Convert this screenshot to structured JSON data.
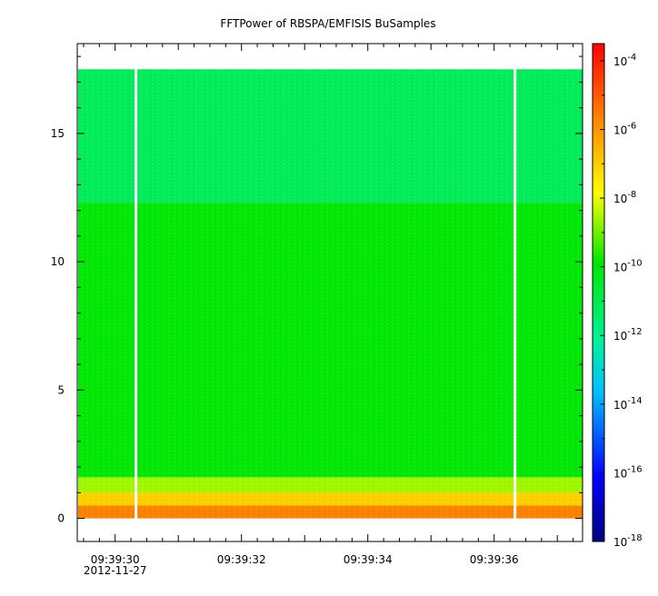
{
  "chart_data": {
    "type": "heatmap",
    "title": "FFTPower of RBSPA/EMFISIS  BuSamples",
    "xlabel": "",
    "ylabel": "",
    "x_ticks": [
      {
        "label": "09:39:30",
        "sub": "2012-11-27",
        "t": 30
      },
      {
        "label": "09:39:32",
        "sub": "",
        "t": 32
      },
      {
        "label": "09:39:34",
        "sub": "",
        "t": 34
      },
      {
        "label": "09:39:36",
        "sub": "",
        "t": 36
      }
    ],
    "x_range_seconds": [
      29.4,
      37.4
    ],
    "y_ticks": [
      0,
      5,
      10,
      15
    ],
    "y_range": [
      -0.9,
      18.5
    ],
    "data_top": 17.5,
    "data_gaps_seconds": [
      30.33,
      36.33
    ],
    "colorbar": {
      "scale": "log",
      "exp_range": [
        -18,
        -3.5
      ],
      "ticks": [
        {
          "base": "10",
          "exp": "-4",
          "value": -4
        },
        {
          "base": "10",
          "exp": "-6",
          "value": -6
        },
        {
          "base": "10",
          "exp": "-8",
          "value": -8
        },
        {
          "base": "10",
          "exp": "-10",
          "value": -10
        },
        {
          "base": "10",
          "exp": "-12",
          "value": -12
        },
        {
          "base": "10",
          "exp": "-14",
          "value": -14
        },
        {
          "base": "10",
          "exp": "-16",
          "value": -16
        },
        {
          "base": "10",
          "exp": "-18",
          "value": -18
        }
      ]
    },
    "bands": [
      {
        "y0": 12.3,
        "y1": 17.5,
        "log_power": -11.2
      },
      {
        "y0": 1.6,
        "y1": 12.3,
        "log_power": -10.0
      },
      {
        "y0": 1.0,
        "y1": 1.6,
        "log_power": -8.6
      },
      {
        "y0": 0.5,
        "y1": 1.0,
        "log_power": -7.0
      },
      {
        "y0": 0.0,
        "y1": 0.5,
        "log_power": -5.6
      }
    ]
  }
}
